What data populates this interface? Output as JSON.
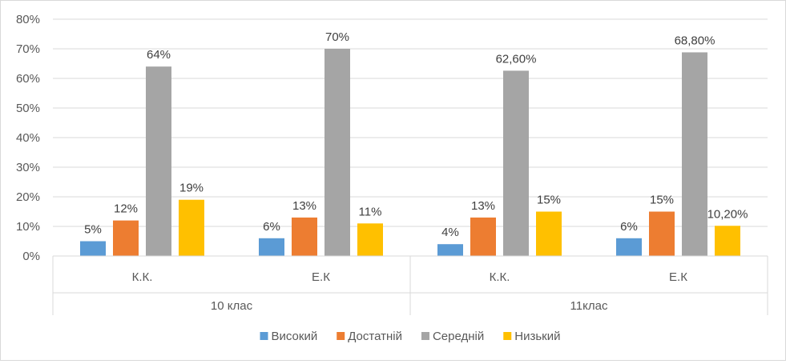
{
  "chart_data": {
    "type": "bar",
    "groups": [
      {
        "label": "10 клас",
        "categories": [
          "К.К.",
          "Е.К"
        ]
      },
      {
        "label": "11клас",
        "categories": [
          "К.К.",
          "Е.К"
        ]
      }
    ],
    "series": [
      {
        "name": "Високий",
        "color": "#5b9bd5",
        "values": [
          5,
          6,
          4,
          6
        ],
        "labels": [
          "5%",
          "6%",
          "4%",
          "6%"
        ]
      },
      {
        "name": "Достатній",
        "color": "#ed7d31",
        "values": [
          12,
          13,
          13,
          15
        ],
        "labels": [
          "12%",
          "13%",
          "13%",
          "15%"
        ]
      },
      {
        "name": "Середній",
        "color": "#a5a5a5",
        "values": [
          64,
          70,
          62.6,
          68.8
        ],
        "labels": [
          "64%",
          "70%",
          "62,60%",
          "68,80%"
        ]
      },
      {
        "name": "Низький",
        "color": "#ffc000",
        "values": [
          19,
          11,
          15,
          10.2
        ],
        "labels": [
          "19%",
          "11%",
          "15%",
          "10,20%"
        ]
      }
    ],
    "y_ticks": [
      "0%",
      "10%",
      "20%",
      "30%",
      "40%",
      "50%",
      "60%",
      "70%",
      "80%"
    ],
    "ylim": [
      0,
      80
    ],
    "grid": true,
    "legend_position": "bottom"
  }
}
